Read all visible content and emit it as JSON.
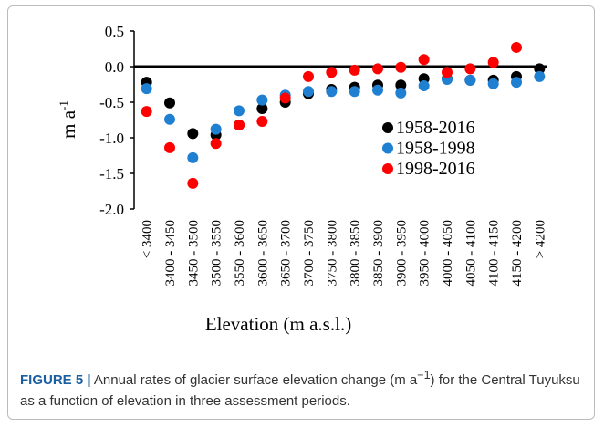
{
  "chart_data": {
    "type": "scatter",
    "categories": [
      "< 3400",
      "3400 - 3450",
      "3450 - 3500",
      "3500 - 3550",
      "3550 - 3600",
      "3600 - 3650",
      "3650 - 3700",
      "3700 - 3750",
      "3750 - 3800",
      "3800 - 3850",
      "3850 - 3900",
      "3900 - 3950",
      "3950 - 4000",
      "4000 - 4050",
      "4050 - 4100",
      "4100 - 4150",
      "4150 - 4200",
      "> 4200"
    ],
    "series": [
      {
        "name": "1958-2016",
        "color": "#000000",
        "values": [
          -0.22,
          -0.51,
          -0.94,
          -0.96,
          -0.82,
          -0.59,
          -0.5,
          -0.38,
          -0.32,
          -0.29,
          -0.26,
          -0.26,
          -0.17,
          -0.17,
          -0.19,
          -0.19,
          -0.14,
          -0.03
        ]
      },
      {
        "name": "1958-1998",
        "color": "#1f7fd0",
        "values": [
          -0.31,
          -0.74,
          -1.28,
          -0.88,
          -0.62,
          -0.47,
          -0.4,
          -0.35,
          -0.35,
          -0.35,
          -0.33,
          -0.37,
          -0.27,
          -0.18,
          -0.19,
          -0.24,
          -0.22,
          -0.14
        ]
      },
      {
        "name": "1998-2016",
        "color": "#ff0000",
        "values": [
          -0.63,
          -1.14,
          -1.64,
          -1.08,
          -0.82,
          -0.77,
          -0.44,
          -0.14,
          -0.08,
          -0.05,
          -0.03,
          -0.01,
          0.1,
          -0.08,
          -0.03,
          0.06,
          0.27,
          null
        ]
      }
    ],
    "ylim": [
      -2.0,
      0.5
    ],
    "yticks": [
      {
        "value": 0.5,
        "label": "0.5"
      },
      {
        "value": 0.0,
        "label": "0.0"
      },
      {
        "value": -0.5,
        "label": "-0.5"
      },
      {
        "value": -1.0,
        "label": "-1.0"
      },
      {
        "value": -1.5,
        "label": "-1.5"
      },
      {
        "value": -2.0,
        "label": "-2.0"
      }
    ],
    "ylabel": "m a",
    "ylabel_sup": "-1",
    "xlabel": "Elevation (m a.s.l.)",
    "legend": "right",
    "grid": false
  },
  "caption": {
    "label": "FIGURE 5 |",
    "text_before": "Annual rates of glacier surface elevation change (m a",
    "sup": "−1",
    "text_after": ") for the Central Tuyuksu as a function of elevation in three assessment periods."
  }
}
